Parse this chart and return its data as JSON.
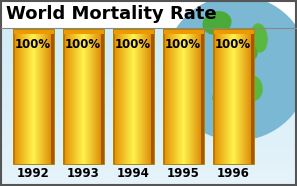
{
  "title": "World Mortality Rate",
  "categories": [
    "1992",
    "1993",
    "1994",
    "1995",
    "1996"
  ],
  "values": [
    100,
    100,
    100,
    100,
    100
  ],
  "bar_label": "100%",
  "title_fontsize": 13,
  "label_fontsize": 8.5,
  "tick_fontsize": 8.5,
  "title_color": "#000000",
  "bg_top": "#ffffff",
  "bg_bottom": "#d0e8f0",
  "bar_left_dark": "#cc7700",
  "bar_center_light": "#ffee88",
  "bar_right_dark": "#bb6600",
  "bar_top_orange": "#ee9900",
  "globe_ocean": "#7ab8d4",
  "globe_land1": "#4aaa3a",
  "globe_land2": "#5ab840",
  "outline_color": "#aa8800"
}
